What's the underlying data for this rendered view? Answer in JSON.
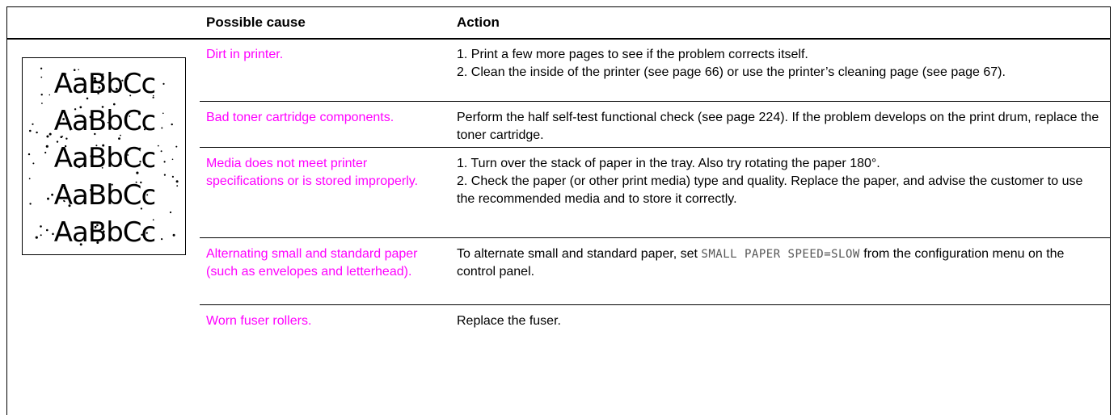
{
  "table": {
    "headers": [
      "Possible cause",
      "Action"
    ],
    "rows": [
      {
        "cause": "Dirt in printer.",
        "action": [
          "1. Print a few more pages to see if the problem corrects itself.",
          "2. Clean the inside of the printer (see page 66) or use the printer’s cleaning page (see page 67)."
        ]
      },
      {
        "cause": "Bad toner cartridge components.",
        "action": [
          "Perform the half self-test functional check (see page 224). If the problem develops on the print drum, replace the toner cartridge."
        ]
      },
      {
        "cause": "Media does not meet printer specifications or is stored improperly.",
        "action": [
          "1. Turn over the stack of paper in the tray. Also try rotating the paper 180°.",
          "2. Check the paper (or other print media) type and quality. Replace the paper, and advise the customer to use the recommended media and to store it correctly."
        ]
      },
      {
        "cause": "Alternating small and standard paper (such as envelopes and letterhead).",
        "action": [
          [
            "To alternate small and standard paper, set ",
            "SMALL PAPER SPEED=SLOW",
            " from the configuration menu on the control panel."
          ]
        ]
      },
      {
        "cause": "Worn fuser rollers.",
        "action": [
          "Replace the fuser."
        ]
      }
    ]
  },
  "sample_image": {
    "lines": [
      "AaBbCc",
      "AaBbCc",
      "AaBbCc",
      "AaBbCc",
      "AaBbCc"
    ]
  }
}
